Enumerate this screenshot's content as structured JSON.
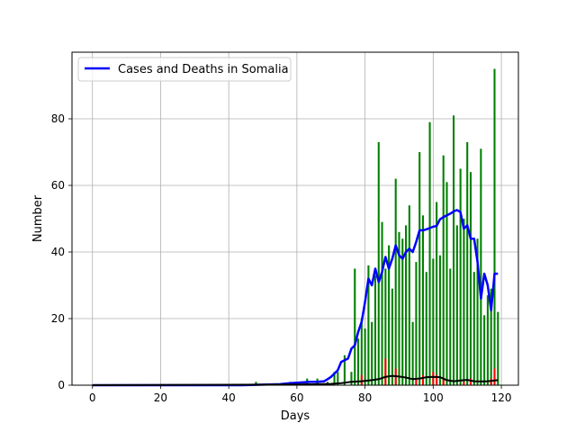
{
  "chart_data": {
    "type": "bar",
    "xlabel": "Days",
    "ylabel": "Number",
    "xlim": [
      -6,
      125
    ],
    "ylim": [
      0,
      100
    ],
    "xticks": [
      0,
      20,
      40,
      60,
      80,
      100,
      120
    ],
    "yticks": [
      0,
      20,
      40,
      60,
      80
    ],
    "grid": true,
    "legend": {
      "position": "top-left",
      "entries": [
        {
          "label": "Cases and Deaths in Somalia",
          "color": "#0000ff"
        }
      ]
    },
    "colors": {
      "cases": "#008000",
      "deaths": "#ff0000",
      "avg_cases": "#0000ff",
      "avg_deaths": "#000000",
      "grid": "#b0b0b0"
    },
    "series": [
      {
        "kind": "bar",
        "color": "#008000",
        "x": [
          48,
          58,
          60,
          63,
          66,
          69,
          71,
          72,
          74,
          76,
          77,
          78,
          79,
          80,
          81,
          82,
          83,
          84,
          85,
          86,
          87,
          88,
          89,
          90,
          91,
          92,
          93,
          94,
          95,
          96,
          97,
          98,
          99,
          100,
          101,
          102,
          103,
          104,
          105,
          106,
          107,
          108,
          109,
          110,
          111,
          112,
          113,
          114,
          115,
          116,
          117,
          118,
          119
        ],
        "values": [
          1,
          1,
          1,
          2,
          2,
          1,
          4,
          4,
          9,
          4,
          35,
          14,
          20,
          17,
          36,
          19,
          33,
          73,
          49,
          35,
          42,
          29,
          62,
          46,
          44,
          48,
          54,
          19,
          37,
          70,
          51,
          34,
          79,
          38,
          55,
          39,
          69,
          61,
          35,
          81,
          48,
          65,
          50,
          73,
          64,
          34,
          44,
          71,
          21,
          27,
          29,
          95,
          22
        ]
      },
      {
        "kind": "bar",
        "color": "#ff0000",
        "x": [
          79,
          86,
          89,
          95,
          97,
          100,
          101,
          103,
          109,
          111,
          117,
          118
        ],
        "values": [
          3,
          8,
          5,
          2,
          3,
          4,
          3,
          2,
          1,
          2,
          2,
          5
        ]
      },
      {
        "kind": "line",
        "color": "#0000ff",
        "x": [
          0,
          44,
          55,
          58,
          61,
          64,
          66,
          68,
          69,
          70,
          71,
          72,
          73,
          74,
          75,
          76,
          77,
          78,
          79,
          80,
          81,
          82,
          83,
          84,
          85,
          86,
          87,
          88,
          89,
          90,
          91,
          92,
          93,
          94,
          95,
          96,
          97,
          98,
          99,
          100,
          101,
          102,
          103,
          104,
          105,
          106,
          107,
          108,
          109,
          110,
          111,
          112,
          113,
          114,
          115,
          116,
          117,
          118,
          119
        ],
        "values": [
          0,
          0,
          0.3,
          0.6,
          0.8,
          1,
          1,
          1.2,
          1.8,
          2.5,
          3.5,
          4.5,
          7,
          7.5,
          8,
          11,
          12,
          16,
          19,
          25,
          32,
          30,
          35,
          31,
          34,
          38.5,
          35,
          38,
          42,
          39,
          38,
          40,
          41,
          40,
          43,
          46.5,
          46.5,
          46.8,
          47.2,
          47.6,
          47.8,
          49.8,
          50.5,
          51,
          51.5,
          52.2,
          52.6,
          52,
          47,
          48,
          44,
          44,
          37,
          26,
          33.5,
          30,
          22.5,
          33.5,
          33.5
        ]
      },
      {
        "kind": "line",
        "color": "#000000",
        "x": [
          0,
          60,
          70,
          73,
          76,
          79,
          82,
          84,
          86,
          88,
          90,
          92,
          94,
          96,
          98,
          100,
          102,
          104,
          106,
          108,
          110,
          112,
          114,
          116,
          118,
          119
        ],
        "values": [
          0,
          0.2,
          0.4,
          0.6,
          1,
          1.2,
          1.5,
          1.8,
          2.5,
          2.8,
          2.6,
          2.3,
          1.8,
          2,
          2.4,
          2.5,
          2.4,
          1.5,
          1.2,
          1.4,
          1.6,
          1.2,
          1.1,
          1.2,
          1.4,
          1.5
        ]
      }
    ]
  }
}
